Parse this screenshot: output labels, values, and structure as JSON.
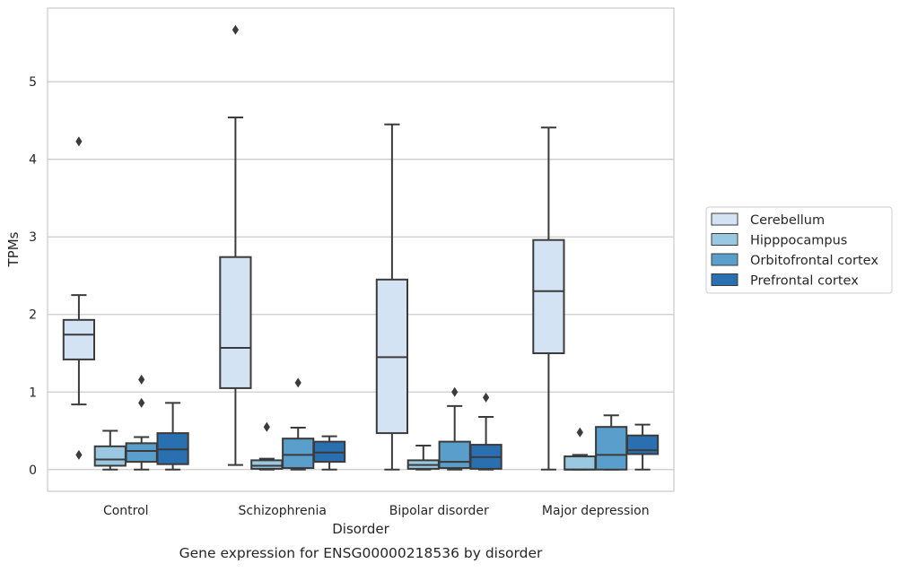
{
  "caption": "Gene expression for ENSG00000218536 by disorder",
  "chart_data": {
    "type": "boxplot",
    "title": "",
    "xlabel": "Disorder",
    "ylabel": "TPMs",
    "ylim": [
      -0.28,
      5.95
    ],
    "yticks": [
      0,
      1,
      2,
      3,
      4,
      5
    ],
    "grid": "horizontal",
    "legend_position": "right",
    "categories": [
      "Control",
      "Schizophrenia",
      "Bipolar disorder",
      "Major depression"
    ],
    "series": [
      {
        "name": "Cerebellum",
        "color": "#d3e3f3",
        "boxes": [
          {
            "whisker_low": 0.84,
            "q1": 1.42,
            "median": 1.74,
            "q3": 1.93,
            "whisker_high": 2.25,
            "outliers": [
              0.19,
              4.23
            ]
          },
          {
            "whisker_low": 0.06,
            "q1": 1.05,
            "median": 1.57,
            "q3": 2.74,
            "whisker_high": 4.54,
            "outliers": [
              5.67
            ]
          },
          {
            "whisker_low": 0.0,
            "q1": 0.47,
            "median": 1.45,
            "q3": 2.45,
            "whisker_high": 4.45,
            "outliers": []
          },
          {
            "whisker_low": 0.0,
            "q1": 1.5,
            "median": 2.3,
            "q3": 2.96,
            "whisker_high": 4.41,
            "outliers": []
          }
        ]
      },
      {
        "name": "Hipppocampus",
        "color": "#9ac8e0",
        "boxes": [
          {
            "whisker_low": 0.0,
            "q1": 0.05,
            "median": 0.13,
            "q3": 0.3,
            "whisker_high": 0.5,
            "outliers": []
          },
          {
            "whisker_low": 0.0,
            "q1": 0.01,
            "median": 0.05,
            "q3": 0.12,
            "whisker_high": 0.14,
            "outliers": [
              0.55
            ]
          },
          {
            "whisker_low": 0.0,
            "q1": 0.01,
            "median": 0.06,
            "q3": 0.12,
            "whisker_high": 0.31,
            "outliers": []
          },
          {
            "whisker_low": 0.0,
            "q1": 0.0,
            "median": 0.0,
            "q3": 0.17,
            "whisker_high": 0.19,
            "outliers": [
              0.48
            ]
          }
        ]
      },
      {
        "name": "Orbitofrontal cortex",
        "color": "#5a9fcb",
        "boxes": [
          {
            "whisker_low": 0.0,
            "q1": 0.1,
            "median": 0.24,
            "q3": 0.34,
            "whisker_high": 0.42,
            "outliers": [
              0.86,
              1.16
            ]
          },
          {
            "whisker_low": 0.0,
            "q1": 0.02,
            "median": 0.19,
            "q3": 0.4,
            "whisker_high": 0.54,
            "outliers": [
              1.12
            ]
          },
          {
            "whisker_low": 0.0,
            "q1": 0.02,
            "median": 0.1,
            "q3": 0.36,
            "whisker_high": 0.82,
            "outliers": [
              1.0
            ]
          },
          {
            "whisker_low": 0.0,
            "q1": 0.0,
            "median": 0.19,
            "q3": 0.55,
            "whisker_high": 0.7,
            "outliers": []
          }
        ]
      },
      {
        "name": "Prefrontal cortex",
        "color": "#2a6fb0",
        "boxes": [
          {
            "whisker_low": 0.0,
            "q1": 0.07,
            "median": 0.26,
            "q3": 0.47,
            "whisker_high": 0.86,
            "outliers": []
          },
          {
            "whisker_low": 0.0,
            "q1": 0.1,
            "median": 0.22,
            "q3": 0.36,
            "whisker_high": 0.43,
            "outliers": []
          },
          {
            "whisker_low": 0.0,
            "q1": 0.01,
            "median": 0.16,
            "q3": 0.32,
            "whisker_high": 0.68,
            "outliers": [
              0.93
            ]
          },
          {
            "whisker_low": 0.0,
            "q1": 0.2,
            "median": 0.25,
            "q3": 0.44,
            "whisker_high": 0.58,
            "outliers": []
          }
        ]
      }
    ]
  }
}
